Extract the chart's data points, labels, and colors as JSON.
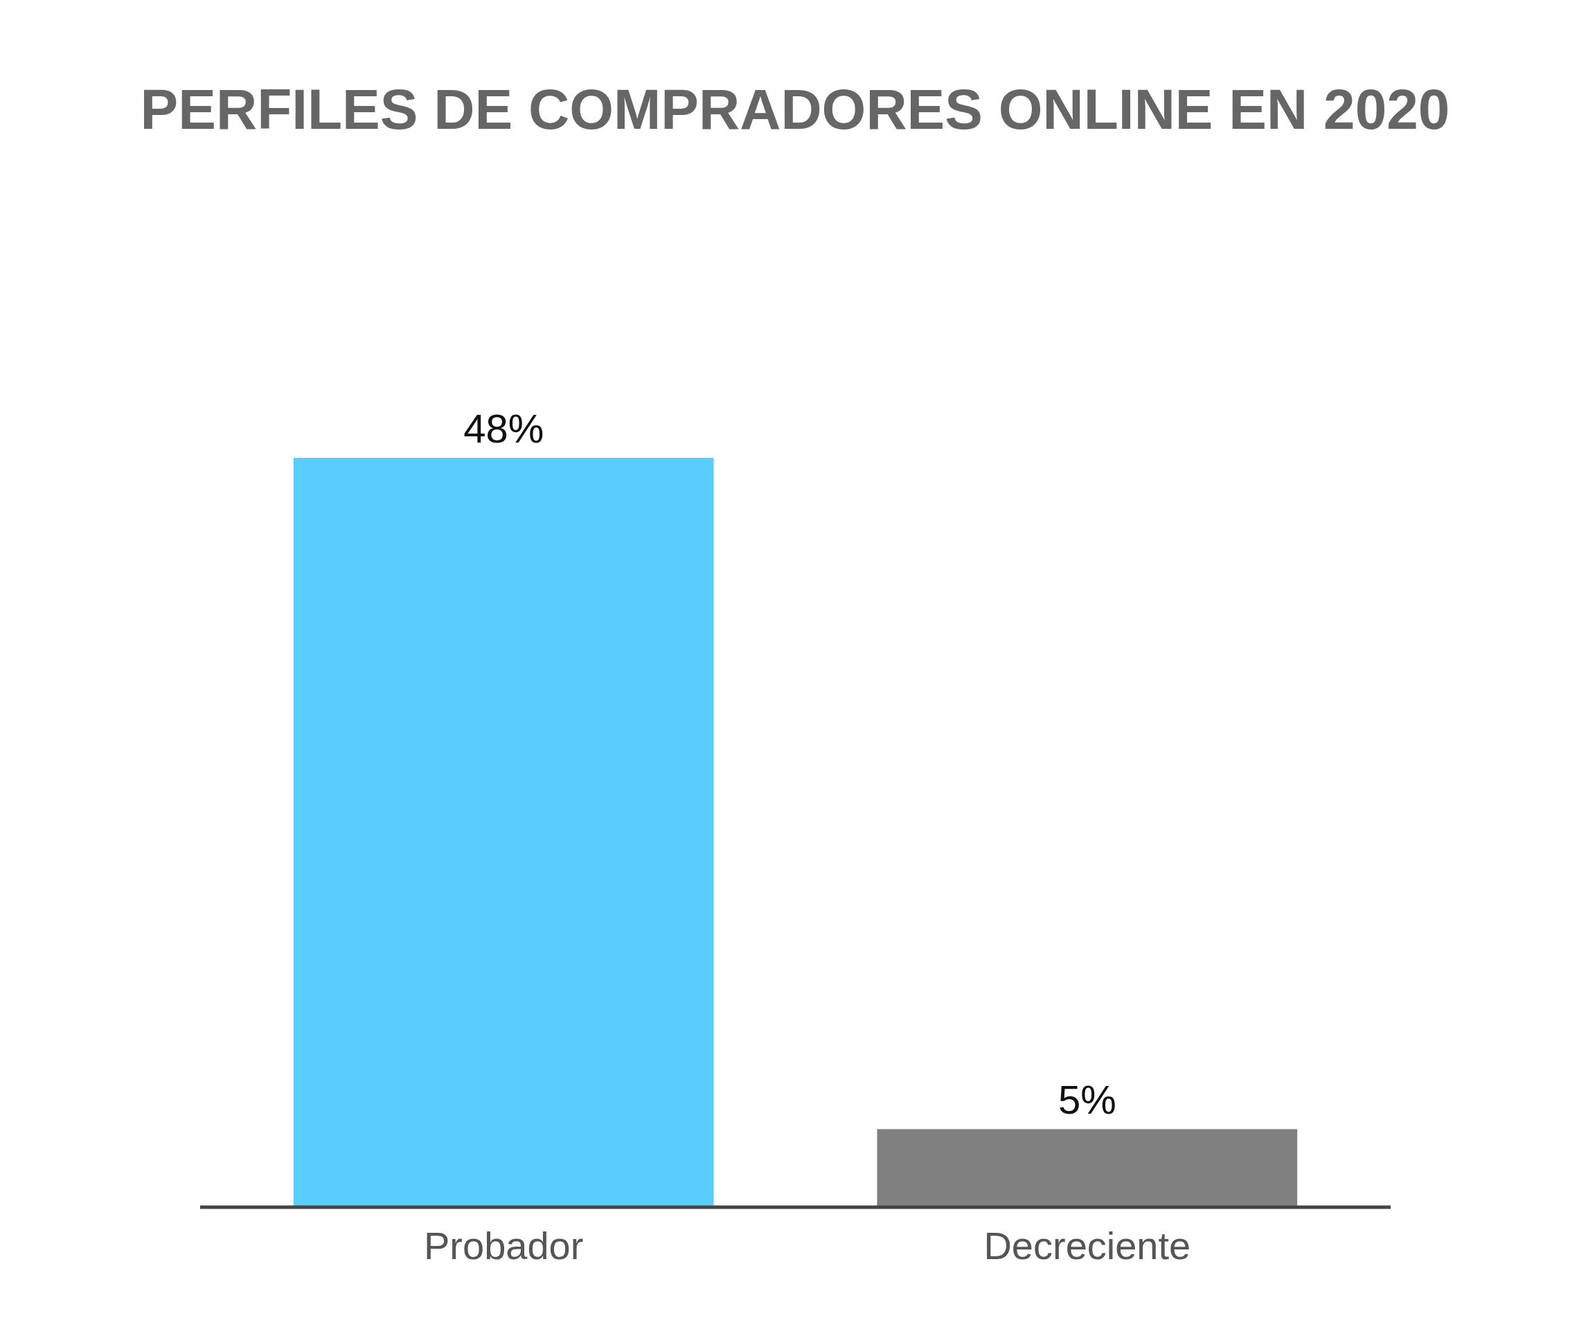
{
  "chart_data": {
    "type": "bar",
    "title": "PERFILES DE COMPRADORES ONLINE EN 2020",
    "categories": [
      "Probador",
      "Decreciente"
    ],
    "values": [
      48,
      5
    ],
    "value_labels": [
      "48%",
      "5%"
    ],
    "colors": [
      "#5bcdfd",
      "#808080"
    ],
    "grid": false,
    "legend": false
  }
}
